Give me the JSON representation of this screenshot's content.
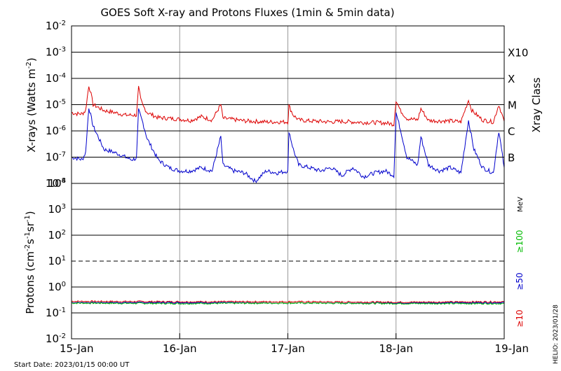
{
  "title": "GOES Soft X-ray and Protons Fluxes   (1min & 5min data)",
  "footer": {
    "start_date": "Start Date: 2023/01/15 00:00 UT",
    "credit": "HELIO: 2023/01/28"
  },
  "colors": {
    "xray_long": "#dd0000",
    "xray_short": "#0000cc",
    "proton_10": "#dd0000",
    "proton_50": "#0000cc",
    "proton_100": "#00bb00",
    "grid": "#999999"
  },
  "chart_data": [
    {
      "type": "line",
      "panel": "xray",
      "ylabel_main": "X-rays (Watts m",
      "ylabel_exp": "-2",
      "ylabel_close": ")",
      "right_label": "Xray Class",
      "y_scale": "log",
      "ylim": [
        1e-08,
        0.01
      ],
      "x_ticks": [
        "15-Jan",
        "16-Jan",
        "17-Jan",
        "18-Jan",
        "19-Jan"
      ],
      "xlim_days": [
        0,
        4
      ],
      "grid": "vertical lines at day boundaries; horizontal lines at each decade",
      "y_tick_labels": [
        {
          "base": "10",
          "exp": "-8",
          "value": 1e-08
        },
        {
          "base": "10",
          "exp": "-7",
          "value": 1e-07
        },
        {
          "base": "10",
          "exp": "-6",
          "value": 1e-06
        },
        {
          "base": "10",
          "exp": "-5",
          "value": 1e-05
        },
        {
          "base": "10",
          "exp": "-4",
          "value": 0.0001
        },
        {
          "base": "10",
          "exp": "-3",
          "value": 0.001
        },
        {
          "base": "10",
          "exp": "-2",
          "value": 0.01
        }
      ],
      "class_labels": [
        {
          "label": "B",
          "value": 1e-07
        },
        {
          "label": "C",
          "value": 1e-06
        },
        {
          "label": "M",
          "value": 1e-05
        },
        {
          "label": "X",
          "value": 0.0001
        },
        {
          "label": "X10",
          "value": 0.001
        }
      ],
      "series": [
        {
          "color": "#dd0000",
          "x": [
            0,
            0.05,
            0.1,
            0.13,
            0.16,
            0.18,
            0.2,
            0.3,
            0.4,
            0.5,
            0.55,
            0.6,
            0.62,
            0.64,
            0.66,
            0.7,
            0.8,
            0.9,
            1.0,
            1.1,
            1.2,
            1.3,
            1.38,
            1.4,
            1.5,
            1.6,
            1.7,
            1.8,
            1.9,
            2.0,
            2.01,
            2.05,
            2.1,
            2.2,
            2.3,
            2.4,
            2.5,
            2.6,
            2.7,
            2.8,
            2.9,
            2.98,
            3.0,
            3.04,
            3.1,
            3.2,
            3.23,
            3.3,
            3.4,
            3.5,
            3.6,
            3.67,
            3.7,
            3.8,
            3.9,
            3.95,
            4.0
          ],
          "y": [
            5e-06,
            4.5e-06,
            4.5e-06,
            6e-06,
            5.5e-05,
            2.5e-05,
            1e-05,
            6e-06,
            5e-06,
            4e-06,
            4e-06,
            4e-06,
            4.5e-05,
            1.5e-05,
            9e-06,
            5e-06,
            3.2e-06,
            3e-06,
            2.8e-06,
            2.5e-06,
            3.5e-06,
            2.6e-06,
            1e-05,
            3e-06,
            2.7e-06,
            2.4e-06,
            2.3e-06,
            2.2e-06,
            2.2e-06,
            2.2e-06,
            9e-06,
            4e-06,
            2.6e-06,
            2.4e-06,
            2.3e-06,
            2.2e-06,
            2.3e-06,
            2.2e-06,
            2.1e-06,
            2.1e-06,
            2e-06,
            1.8e-06,
            1.5e-05,
            6e-06,
            3e-06,
            2.6e-06,
            7e-06,
            2.5e-06,
            2.4e-06,
            2.4e-06,
            2.2e-06,
            1.5e-05,
            6e-06,
            2.6e-06,
            2.2e-06,
            1e-05,
            2.3e-06
          ]
        },
        {
          "color": "#0000cc",
          "x": [
            0,
            0.05,
            0.1,
            0.13,
            0.16,
            0.2,
            0.3,
            0.4,
            0.5,
            0.55,
            0.6,
            0.62,
            0.66,
            0.7,
            0.8,
            0.9,
            1.0,
            1.1,
            1.2,
            1.3,
            1.38,
            1.4,
            1.5,
            1.6,
            1.7,
            1.8,
            1.9,
            2.0,
            2.01,
            2.05,
            2.1,
            2.2,
            2.3,
            2.4,
            2.5,
            2.6,
            2.7,
            2.8,
            2.9,
            2.98,
            3.0,
            3.05,
            3.1,
            3.2,
            3.23,
            3.3,
            3.4,
            3.5,
            3.6,
            3.67,
            3.72,
            3.8,
            3.9,
            3.95,
            4.0
          ],
          "y": [
            1e-07,
            9e-08,
            8e-08,
            1.5e-07,
            8e-06,
            1.5e-06,
            2e-07,
            1.5e-07,
            1e-07,
            8e-08,
            9e-08,
            6e-06,
            2e-06,
            5e-07,
            8e-08,
            4e-08,
            3e-08,
            3e-08,
            4e-08,
            3e-08,
            6e-07,
            5e-08,
            3e-08,
            2.5e-08,
            1.2e-08,
            3e-08,
            2.5e-08,
            3e-08,
            1e-06,
            2e-07,
            5e-08,
            4e-08,
            3e-08,
            4e-08,
            2e-08,
            4e-08,
            1.8e-08,
            2.5e-08,
            3e-08,
            2e-08,
            5e-06,
            8e-07,
            1e-07,
            5e-08,
            6e-07,
            5e-08,
            3e-08,
            4e-08,
            2.5e-08,
            2.5e-06,
            2e-07,
            4e-08,
            2.5e-08,
            1e-06,
            4e-08
          ]
        }
      ]
    },
    {
      "type": "line",
      "panel": "protons",
      "ylabel_main": "Protons (cm",
      "ylabel_exp1": "-2",
      "ylabel_mid": "s",
      "ylabel_exp2": "-1",
      "ylabel_mid2": "sr",
      "ylabel_exp3": "-1",
      "ylabel_close": ")",
      "y_scale": "log",
      "ylim": [
        0.01,
        10000
      ],
      "x_ticks": [
        "15-Jan",
        "16-Jan",
        "17-Jan",
        "18-Jan",
        "19-Jan"
      ],
      "xlim_days": [
        0,
        4
      ],
      "threshold_line": {
        "value": 10,
        "style": "dashed"
      },
      "y_tick_labels": [
        {
          "base": "10",
          "exp": "-2",
          "value": 0.01
        },
        {
          "base": "10",
          "exp": "-1",
          "value": 0.1
        },
        {
          "base": "10",
          "exp": "0",
          "value": 1
        },
        {
          "base": "10",
          "exp": "1",
          "value": 10
        },
        {
          "base": "10",
          "exp": "2",
          "value": 100
        },
        {
          "base": "10",
          "exp": "3",
          "value": 1000
        },
        {
          "base": "10",
          "exp": "4",
          "value": 10000
        }
      ],
      "legend_unit": "MeV",
      "legend": [
        {
          "name": "≥100",
          "color": "#00bb00"
        },
        {
          "name": "≥50",
          "color": "#0000cc"
        },
        {
          "name": "≥10",
          "color": "#dd0000"
        }
      ],
      "series": [
        {
          "name": "≥10",
          "color": "#dd0000",
          "x": [
            0,
            1,
            2,
            3,
            4
          ],
          "y": [
            0.28,
            0.27,
            0.27,
            0.26,
            0.27
          ]
        },
        {
          "name": "≥50",
          "color": "#0000cc",
          "x": [
            0,
            1,
            2,
            3,
            4
          ],
          "y": [
            0.25,
            0.25,
            0.24,
            0.24,
            0.25
          ]
        },
        {
          "name": "≥100",
          "color": "#00bb00",
          "x": [
            0,
            1,
            2,
            3,
            4
          ],
          "y": [
            0.24,
            0.23,
            0.24,
            0.23,
            0.23
          ]
        }
      ]
    }
  ]
}
